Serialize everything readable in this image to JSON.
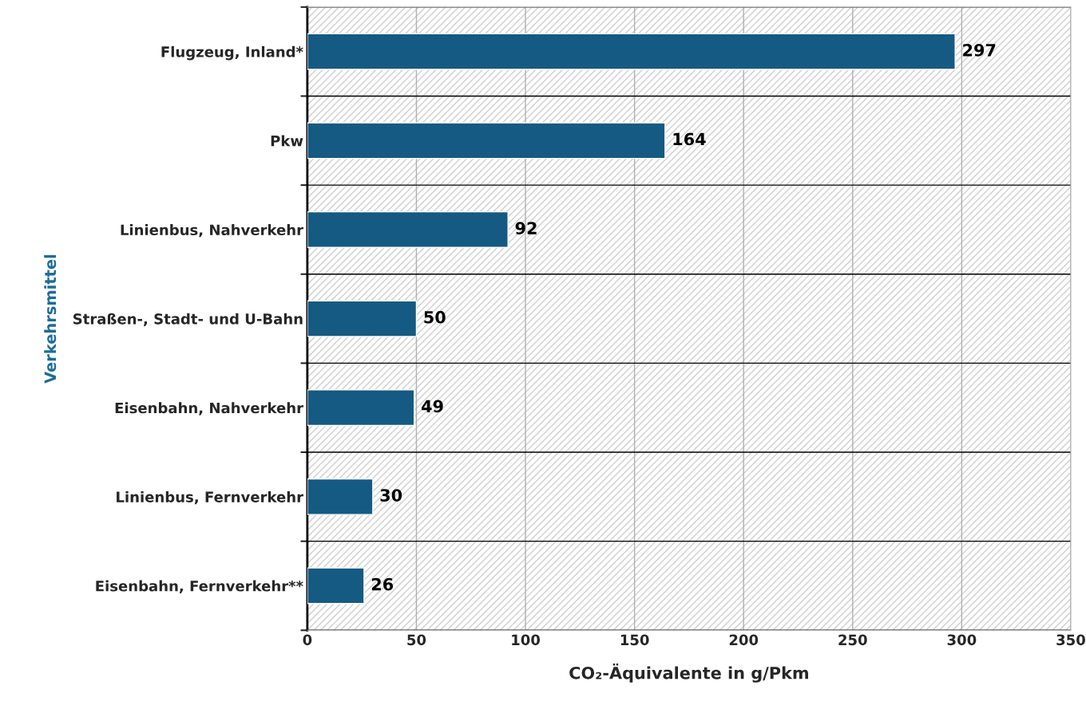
{
  "chart_data": {
    "type": "bar",
    "orientation": "horizontal",
    "categories": [
      "Flugzeug, Inland*",
      "Pkw",
      "Linienbus, Nahverkehr",
      "Straßen-, Stadt- und U-Bahn",
      "Eisenbahn, Nahverkehr",
      "Linienbus, Fernverkehr",
      "Eisenbahn, Fernverkehr**"
    ],
    "values": [
      297,
      164,
      92,
      50,
      49,
      30,
      26
    ],
    "color": "#155a82",
    "xlabel": "CO₂-Äquivalente in g/Pkm",
    "ylabel": "Verkehrsmittel",
    "xlim": [
      0,
      350
    ],
    "xticks": [
      0,
      50,
      100,
      150,
      200,
      250,
      300,
      350
    ],
    "grid": true,
    "data_labels": true
  }
}
